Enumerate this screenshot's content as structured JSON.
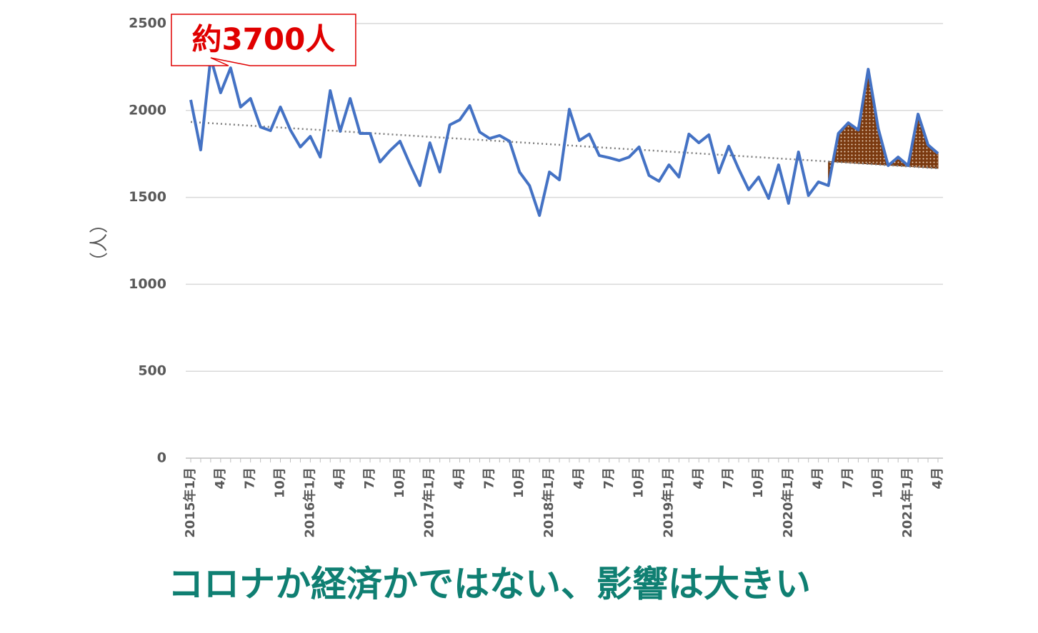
{
  "chart_data": {
    "type": "line",
    "y_label": "（人）",
    "annotation": "約3700人",
    "caption": "コロナか経済かではない、影響は大きい",
    "categories": [
      "2015年1月",
      null,
      null,
      "4月",
      null,
      null,
      "7月",
      null,
      null,
      "10月",
      null,
      null,
      "2016年1月",
      null,
      null,
      "4月",
      null,
      null,
      "7月",
      null,
      null,
      "10月",
      null,
      null,
      "2017年1月",
      null,
      null,
      "4月",
      null,
      null,
      "7月",
      null,
      null,
      "10月",
      null,
      null,
      "2018年1月",
      null,
      null,
      "4月",
      null,
      null,
      "7月",
      null,
      null,
      "10月",
      null,
      null,
      "2019年1月",
      null,
      null,
      "4月",
      null,
      null,
      "7月",
      null,
      null,
      "10月",
      null,
      null,
      "2020年1月",
      null,
      null,
      "4月",
      null,
      null,
      "7月",
      null,
      null,
      "10月",
      null,
      null,
      "2021年1月",
      null,
      null,
      "4月"
    ],
    "values": [
      2061,
      1773,
      2303,
      2102,
      2245,
      2020,
      2069,
      1905,
      1884,
      2020,
      1888,
      1790,
      1851,
      1732,
      2114,
      1880,
      2069,
      1868,
      1868,
      1704,
      1769,
      1823,
      1691,
      1568,
      1814,
      1646,
      1917,
      1946,
      2028,
      1876,
      1839,
      1856,
      1823,
      1646,
      1568,
      1396,
      1646,
      1601,
      2007,
      1827,
      1864,
      1741,
      1728,
      1712,
      1732,
      1790,
      1626,
      1593,
      1687,
      1617,
      1864,
      1814,
      1860,
      1642,
      1794,
      1663,
      1544,
      1617,
      1494,
      1687,
      1466,
      1761,
      1511,
      1589,
      1568,
      1868,
      1929,
      1888,
      2237,
      1897,
      1683,
      1732,
      1683,
      1979,
      1802,
      1753
    ],
    "color": "#4472c4",
    "trendline": "linear",
    "highlight": {
      "from": 64,
      "color": "#7b3a10"
    },
    "ylim": [
      0,
      2500
    ],
    "yticks": [
      0,
      500,
      1000,
      1500,
      2000,
      2500
    ],
    "grid": true
  }
}
